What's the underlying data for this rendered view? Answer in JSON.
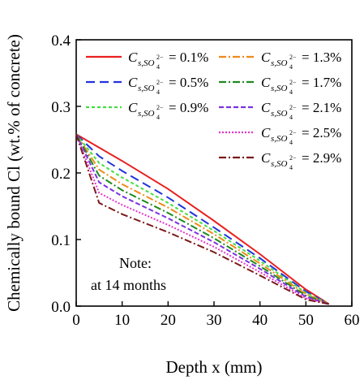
{
  "chart_data": {
    "type": "line",
    "xlabel": "Depth x (mm)",
    "ylabel": "Chemically bound Cl (wt.% of concrete)",
    "xlim": [
      0,
      60
    ],
    "ylim": [
      0,
      0.4
    ],
    "xticks": [
      "0",
      "10",
      "20",
      "30",
      "40",
      "50",
      "60"
    ],
    "yticks": [
      "0.0",
      "0.1",
      "0.2",
      "0.3",
      "0.4"
    ],
    "grid": false,
    "legend_placement": "top-right",
    "annotation": [
      "Note:",
      "at 14 months"
    ],
    "series": [
      {
        "name": "= 0.1%",
        "subscript": "SO4 2-",
        "color": "#e8201f",
        "dash": "solid",
        "x": [
          0,
          5,
          10,
          20,
          30,
          40,
          50,
          55
        ],
        "y": [
          0.258,
          0.238,
          0.218,
          0.176,
          0.128,
          0.078,
          0.025,
          0.003
        ]
      },
      {
        "name": "= 0.5%",
        "subscript": "SO4 2-",
        "color": "#2233dd",
        "dash": "long",
        "x": [
          0,
          5,
          10,
          20,
          30,
          40,
          50,
          55
        ],
        "y": [
          0.258,
          0.225,
          0.203,
          0.163,
          0.118,
          0.072,
          0.022,
          0.003
        ]
      },
      {
        "name": "= 0.9%",
        "subscript": "SO4 2-",
        "color": "#44dd44",
        "dash": "short",
        "x": [
          0,
          5,
          10,
          20,
          30,
          40,
          50,
          55
        ],
        "y": [
          0.258,
          0.215,
          0.193,
          0.155,
          0.113,
          0.068,
          0.02,
          0.003
        ]
      },
      {
        "name": "= 1.3%",
        "subscript": "SO4 2-",
        "color": "#f08a1c",
        "dash": "dashdot",
        "x": [
          0,
          5,
          10,
          20,
          30,
          40,
          50,
          55
        ],
        "y": [
          0.258,
          0.205,
          0.183,
          0.148,
          0.108,
          0.064,
          0.018,
          0.003
        ]
      },
      {
        "name": "= 1.7%",
        "subscript": "SO4 2-",
        "color": "#1f8a1f",
        "dash": "dashdot",
        "x": [
          0,
          5,
          10,
          20,
          30,
          40,
          50,
          55
        ],
        "y": [
          0.258,
          0.196,
          0.174,
          0.14,
          0.102,
          0.06,
          0.016,
          0.003
        ]
      },
      {
        "name": "= 2.1%",
        "subscript": "SO4 2-",
        "color": "#7a33dd",
        "dash": "dash",
        "x": [
          0,
          5,
          10,
          20,
          30,
          40,
          50,
          55
        ],
        "y": [
          0.258,
          0.186,
          0.165,
          0.132,
          0.096,
          0.056,
          0.014,
          0.003
        ]
      },
      {
        "name": "= 2.5%",
        "subscript": "SO4 2-",
        "color": "#e633cc",
        "dash": "dot",
        "x": [
          0,
          5,
          10,
          20,
          30,
          40,
          50,
          55
        ],
        "y": [
          0.258,
          0.17,
          0.152,
          0.122,
          0.089,
          0.051,
          0.012,
          0.003
        ]
      },
      {
        "name": "= 2.9%",
        "subscript": "SO4 2-",
        "color": "#7a1a1a",
        "dash": "dashdot",
        "x": [
          0,
          5,
          10,
          20,
          30,
          40,
          50,
          55
        ],
        "y": [
          0.258,
          0.155,
          0.138,
          0.111,
          0.081,
          0.046,
          0.01,
          0.003
        ]
      }
    ]
  }
}
